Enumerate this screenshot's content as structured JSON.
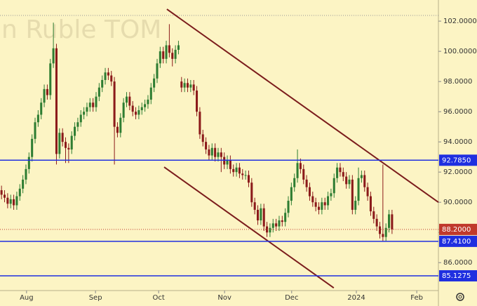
{
  "chart_data": {
    "type": "candlestick",
    "watermark": "an Ruble TOM",
    "x": [
      0,
      1,
      2,
      3,
      4,
      5,
      6,
      7,
      8,
      9,
      10,
      11,
      12,
      13,
      14,
      15,
      16,
      17,
      18,
      19,
      20,
      21,
      22,
      23,
      24,
      25,
      26,
      27,
      28,
      29,
      30,
      31,
      32,
      33,
      34,
      35,
      36,
      37,
      38,
      39,
      40,
      41,
      42,
      43,
      44,
      45,
      46,
      47,
      48,
      49,
      50,
      51,
      52,
      53,
      54,
      55,
      56,
      57,
      58,
      59,
      60,
      61,
      62,
      63,
      64,
      65,
      66,
      67,
      68,
      69,
      70,
      71,
      72,
      73,
      74,
      75,
      76,
      77,
      78,
      79,
      80,
      81,
      82,
      83,
      84,
      85,
      86,
      87,
      88,
      89,
      90,
      91,
      92,
      93,
      94,
      95,
      96,
      97,
      98,
      99,
      100,
      101,
      102,
      103,
      104,
      105,
      106,
      107,
      108,
      109,
      110,
      111,
      112,
      113,
      114,
      115,
      116,
      117,
      118,
      119,
      120,
      121,
      122,
      123,
      124,
      125,
      126,
      127,
      128
    ],
    "open": [
      90.8,
      90.5,
      90.3,
      89.9,
      90.2,
      89.8,
      90.4,
      90.9,
      91.5,
      92.2,
      93.0,
      94.2,
      95.3,
      95.8,
      96.6,
      97.5,
      97.1,
      99.2,
      100.2,
      93.2,
      94.6,
      94.0,
      93.6,
      93.5,
      94.4,
      95.0,
      95.3,
      95.8,
      96.0,
      96.3,
      96.6,
      96.3,
      97.0,
      97.6,
      98.1,
      98.6,
      98.4,
      98.0,
      95.0,
      94.6,
      95.6,
      96.6,
      97.0,
      96.4,
      96.0,
      95.8,
      96.1,
      96.3,
      96.5,
      96.8,
      97.6,
      98.2,
      99.2,
      100.0,
      99.5,
      100.4,
      99.9,
      99.5,
      100.1,
      98.0,
      97.6,
      97.9,
      97.6,
      97.8,
      97.4,
      96.0,
      94.5,
      94.0,
      93.5,
      93.1,
      93.6,
      93.0,
      93.3,
      93.0,
      92.5,
      92.8,
      92.2,
      92.0,
      92.3,
      91.9,
      91.8,
      91.8,
      91.3,
      90.0,
      89.5,
      88.8,
      89.6,
      88.4,
      88.0,
      88.3,
      88.6,
      88.4,
      88.8,
      88.7,
      89.3,
      90.1,
      91.0,
      91.6,
      92.6,
      92.2,
      91.5,
      91.0,
      90.4,
      90.0,
      89.7,
      89.5,
      90.0,
      89.8,
      90.4,
      90.6,
      91.6,
      92.3,
      92.0,
      91.7,
      91.2,
      91.5,
      89.5,
      90.1,
      91.6,
      91.8,
      91.0,
      90.4,
      89.4,
      88.9,
      88.4,
      87.9,
      87.7,
      88.3,
      89.2
    ],
    "high": [
      91.1,
      90.8,
      90.6,
      90.5,
      90.5,
      90.7,
      91.2,
      91.8,
      92.5,
      93.3,
      94.5,
      95.6,
      96.1,
      96.9,
      97.8,
      97.8,
      99.5,
      101.9,
      100.5,
      94.9,
      94.9,
      94.3,
      93.9,
      94.7,
      95.3,
      95.6,
      96.1,
      96.3,
      96.6,
      96.9,
      96.9,
      97.3,
      97.9,
      98.4,
      98.9,
      98.9,
      98.7,
      98.3,
      95.3,
      95.9,
      96.9,
      97.3,
      97.3,
      96.7,
      96.3,
      96.4,
      96.6,
      96.8,
      97.1,
      97.9,
      98.5,
      99.5,
      100.3,
      100.3,
      100.7,
      101.8,
      100.2,
      100.4,
      100.7,
      98.3,
      98.2,
      98.2,
      98.1,
      98.1,
      97.7,
      96.3,
      94.8,
      94.3,
      93.8,
      93.9,
      93.9,
      93.6,
      93.6,
      93.3,
      93.1,
      93.1,
      92.5,
      92.6,
      92.6,
      92.2,
      92.1,
      92.1,
      91.6,
      90.3,
      89.8,
      89.9,
      89.9,
      88.7,
      88.6,
      88.9,
      88.9,
      89.1,
      89.1,
      89.6,
      90.4,
      91.3,
      91.9,
      93.5,
      92.9,
      92.5,
      91.8,
      91.3,
      90.7,
      90.3,
      90.0,
      90.3,
      90.3,
      90.7,
      90.9,
      91.9,
      92.6,
      92.6,
      92.3,
      92.0,
      91.8,
      91.8,
      90.4,
      92.3,
      92.1,
      92.1,
      91.3,
      90.7,
      89.7,
      89.2,
      88.7,
      92.5,
      88.6,
      89.5,
      89.5
    ],
    "low": [
      90.2,
      90.0,
      89.6,
      89.6,
      89.5,
      89.5,
      90.1,
      90.6,
      91.2,
      91.9,
      92.7,
      93.9,
      95.0,
      95.5,
      96.3,
      96.8,
      96.8,
      98.9,
      92.5,
      92.9,
      93.7,
      92.6,
      92.6,
      93.2,
      94.1,
      94.7,
      95.0,
      95.5,
      95.7,
      96.0,
      96.0,
      96.0,
      96.7,
      97.3,
      97.8,
      98.1,
      97.7,
      92.5,
      94.3,
      94.3,
      95.3,
      96.3,
      96.1,
      95.7,
      95.5,
      95.5,
      95.8,
      96.0,
      96.2,
      96.5,
      97.3,
      97.9,
      98.9,
      99.2,
      99.2,
      99.6,
      99.0,
      99.2,
      99.8,
      97.3,
      97.3,
      97.3,
      97.3,
      97.1,
      95.7,
      94.2,
      93.7,
      93.2,
      92.8,
      92.8,
      92.7,
      92.7,
      92.0,
      92.2,
      92.2,
      91.9,
      91.7,
      91.7,
      91.6,
      91.5,
      91.5,
      91.0,
      89.7,
      89.2,
      88.5,
      88.5,
      88.1,
      87.7,
      87.7,
      88.0,
      88.1,
      88.1,
      88.4,
      88.4,
      89.0,
      89.8,
      90.7,
      91.3,
      91.9,
      91.2,
      90.7,
      90.1,
      89.7,
      89.4,
      89.2,
      89.2,
      89.5,
      89.5,
      90.1,
      90.3,
      91.3,
      91.7,
      91.4,
      90.9,
      90.9,
      89.2,
      89.2,
      89.8,
      91.3,
      90.7,
      90.1,
      89.1,
      88.6,
      88.1,
      87.6,
      87.4,
      87.4,
      88.0,
      87.9
    ],
    "close": [
      90.5,
      90.3,
      89.9,
      90.2,
      89.8,
      90.4,
      90.9,
      91.5,
      92.2,
      93.0,
      94.2,
      95.3,
      95.8,
      96.6,
      97.5,
      97.1,
      99.2,
      100.2,
      93.2,
      94.6,
      94.0,
      93.6,
      93.5,
      94.4,
      95.0,
      95.3,
      95.8,
      96.0,
      96.3,
      96.6,
      96.3,
      97.0,
      97.6,
      98.1,
      98.6,
      98.4,
      98.0,
      95.0,
      94.6,
      95.6,
      96.6,
      97.0,
      96.4,
      96.0,
      95.8,
      96.1,
      96.3,
      96.5,
      96.8,
      97.6,
      98.2,
      99.2,
      100.0,
      99.5,
      100.4,
      99.9,
      99.5,
      100.1,
      100.4,
      97.6,
      97.9,
      97.6,
      97.8,
      97.4,
      96.0,
      94.5,
      94.0,
      93.5,
      93.1,
      93.6,
      93.0,
      93.3,
      93.0,
      92.5,
      92.8,
      92.2,
      92.0,
      92.3,
      91.9,
      91.8,
      91.8,
      91.3,
      90.0,
      89.5,
      88.8,
      89.6,
      88.4,
      88.0,
      88.3,
      88.6,
      88.4,
      88.8,
      88.7,
      89.3,
      90.1,
      91.0,
      91.6,
      92.6,
      92.2,
      91.5,
      91.0,
      90.4,
      90.0,
      89.7,
      89.5,
      90.0,
      89.8,
      90.4,
      90.6,
      91.6,
      92.3,
      92.0,
      91.7,
      91.2,
      91.5,
      89.5,
      90.1,
      91.6,
      91.8,
      91.0,
      90.4,
      89.4,
      88.9,
      88.4,
      87.9,
      87.7,
      88.3,
      89.2,
      88.2
    ],
    "up_color": "#2e7d32",
    "down_color": "#8b1a1a",
    "xlim": [
      -0.5,
      143.2
    ],
    "ylim": [
      84.15,
      103.4
    ],
    "yticks": [
      {
        "value": 86,
        "label": "86.0000"
      },
      {
        "value": 88,
        "label": "88.0000"
      },
      {
        "value": 90,
        "label": "90.0000"
      },
      {
        "value": 92,
        "label": "92.0000"
      },
      {
        "value": 94,
        "label": "94.0000"
      },
      {
        "value": 96,
        "label": "96.0000"
      },
      {
        "value": 98,
        "label": "98.0000"
      },
      {
        "value": 100,
        "label": "100.0000"
      },
      {
        "value": 102,
        "label": "102.0000"
      }
    ],
    "xticks": [
      {
        "value": 8.2,
        "label": "Aug"
      },
      {
        "value": 30.8,
        "label": "Sep"
      },
      {
        "value": 51.5,
        "label": "Oct"
      },
      {
        "value": 73.1,
        "label": "Nov"
      },
      {
        "value": 95.1,
        "label": "Dec"
      },
      {
        "value": 116.3,
        "label": "2024"
      },
      {
        "value": 136.1,
        "label": "Feb"
      }
    ],
    "levels": [
      {
        "value": 92.785,
        "label": "92.7850"
      },
      {
        "value": 87.41,
        "label": "87.4100"
      },
      {
        "value": 85.1275,
        "label": "85.1275"
      }
    ],
    "level_color": "#1f2fe0",
    "last_price": {
      "value": 88.2,
      "label": "88.2000"
    },
    "last_color": "#c0392b",
    "trendlines": [
      {
        "x": [
          54.2,
          143.2
        ],
        "y": [
          102.79,
          90.0
        ]
      },
      {
        "x": [
          53.3,
          108.9
        ],
        "y": [
          92.33,
          84.33
        ]
      }
    ],
    "trend_color": "#7b1c1c"
  }
}
